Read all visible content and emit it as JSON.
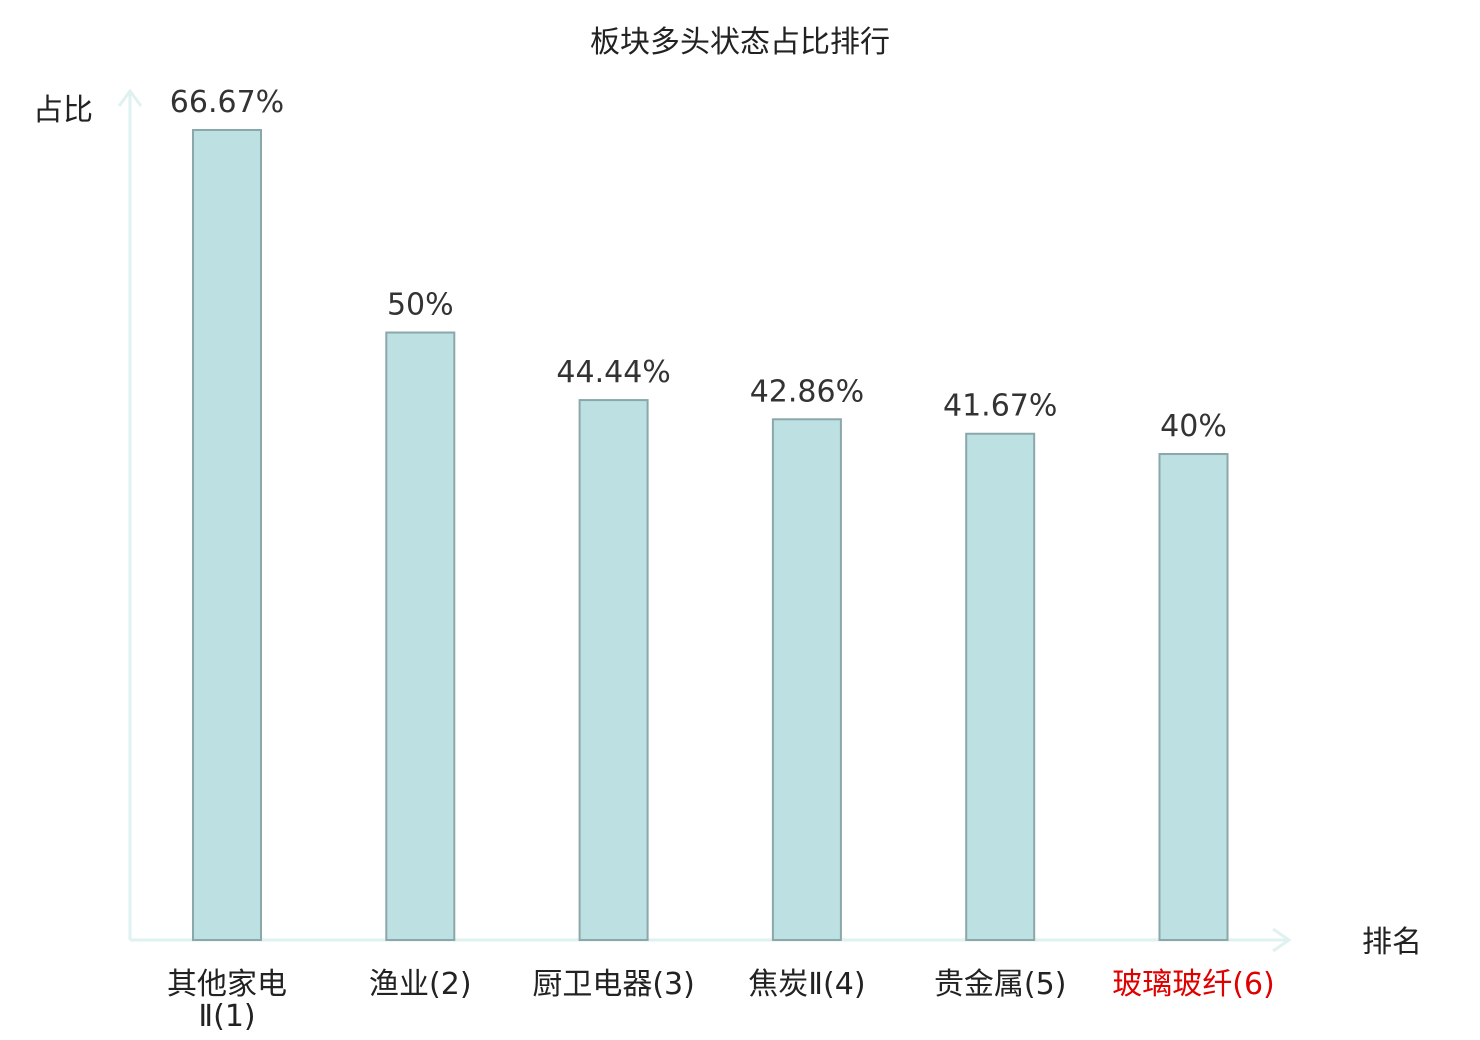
{
  "chart_data": {
    "type": "bar",
    "title": "板块多头状态占比排行",
    "ylabel": "占比",
    "xlabel": "排名",
    "ylim": [
      0,
      70
    ],
    "grid": false,
    "categories": [
      [
        "其他家电",
        "Ⅱ(1)"
      ],
      [
        "渔业(2)"
      ],
      [
        "厨卫电器(3)"
      ],
      [
        "焦炭Ⅱ(4)"
      ],
      [
        "贵金属(5)"
      ],
      [
        "玻璃玻纤(6)"
      ]
    ],
    "values": [
      66.67,
      50,
      44.44,
      42.86,
      41.67,
      40
    ],
    "value_labels": [
      "66.67%",
      "50%",
      "44.44%",
      "42.86%",
      "41.67%",
      "40%"
    ],
    "highlight_index": 5,
    "colors": {
      "bar_fill": "#bde0e2",
      "bar_stroke": "#8aa7aa",
      "axis": "#dff2f0",
      "highlight_label": "#e00000",
      "normal_label": "#222222"
    }
  }
}
